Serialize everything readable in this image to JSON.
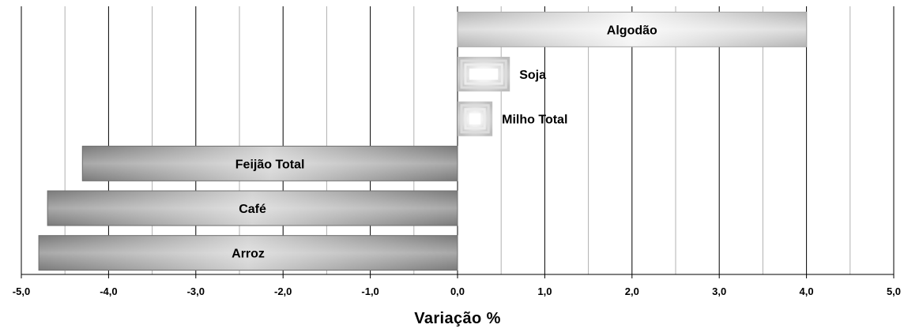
{
  "chart_data": {
    "type": "bar",
    "orientation": "horizontal",
    "categories": [
      "Algodão",
      "Soja",
      "Milho Total",
      "Feijão Total",
      "Café",
      "Arroz"
    ],
    "values": [
      4.0,
      0.6,
      0.4,
      -4.3,
      -4.7,
      -4.8
    ],
    "xlabel": "Variação %",
    "xlim": [
      -5.0,
      5.0
    ],
    "x_ticks": [
      "-5,0",
      "-4,0",
      "-3,0",
      "-2,0",
      "-1,0",
      "0,0",
      "1,0",
      "2,0",
      "3,0",
      "4,0",
      "5,0"
    ],
    "grid": true,
    "legend": "none",
    "colors": {
      "positive_bar": "#c8c8c8",
      "negative_bar": "#8c8c8c",
      "major_grid": "#000000",
      "minor_grid": "#b0b0b0"
    }
  }
}
